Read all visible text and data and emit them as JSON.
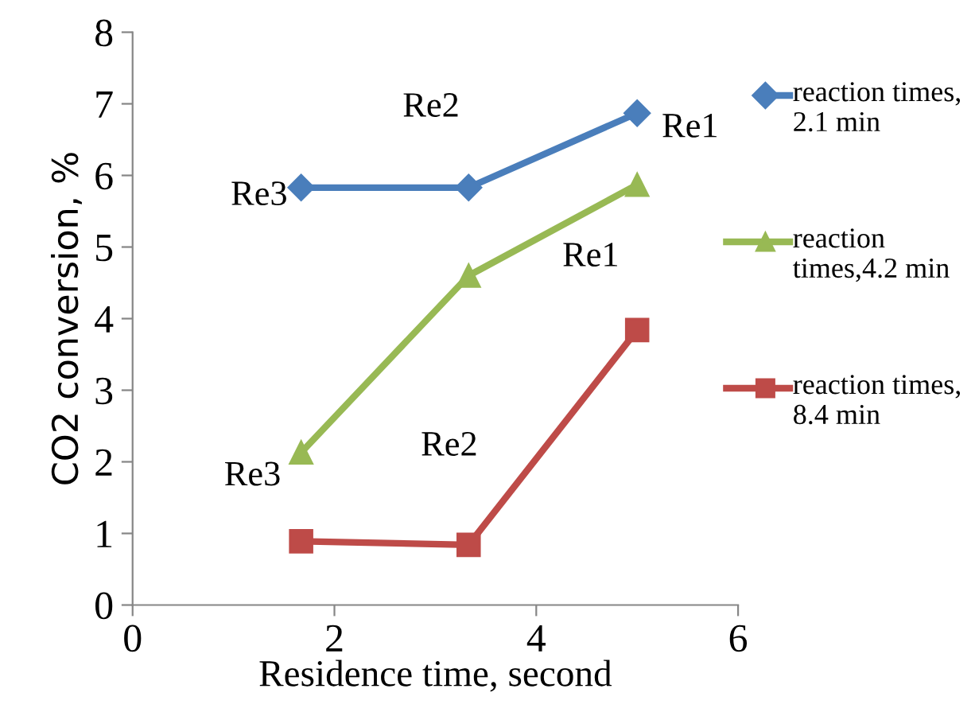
{
  "chart_data": {
    "type": "line",
    "xlabel": "Residence time, second",
    "ylabel": "CO2 conversion, %",
    "x": [
      1.67,
      3.33,
      5.0
    ],
    "series": [
      {
        "name": "reaction times, 2.1 min",
        "color": "#4a7ebb",
        "marker": "diamond",
        "values": [
          5.83,
          5.83,
          6.87
        ]
      },
      {
        "name": "reaction times,4.2 min",
        "color": "#98b954",
        "marker": "triangle",
        "values": [
          2.13,
          4.6,
          5.87
        ]
      },
      {
        "name": "reaction times, 8.4 min",
        "color": "#be4b48",
        "marker": "square",
        "values": [
          0.89,
          0.84,
          3.84
        ]
      }
    ],
    "annotations": [
      {
        "text": "Re2",
        "x": 3.33,
        "y": 5.83
      },
      {
        "text": "Re1",
        "x": 5.0,
        "y": 6.87
      },
      {
        "text": "Re3",
        "x": 1.67,
        "y": 5.83
      },
      {
        "text": "Re1",
        "x": 5.0,
        "y": 5.87
      },
      {
        "text": "Re3",
        "x": 1.67,
        "y": 2.13
      },
      "Re2"
    ],
    "xlim": [
      0,
      6
    ],
    "xticks": [
      0,
      2,
      4,
      6
    ],
    "ylim": [
      0,
      8
    ],
    "yticks": [
      0,
      1,
      2,
      3,
      4,
      5,
      6,
      7,
      8
    ],
    "grid": false,
    "legend": "right",
    "line_style": "solid"
  }
}
